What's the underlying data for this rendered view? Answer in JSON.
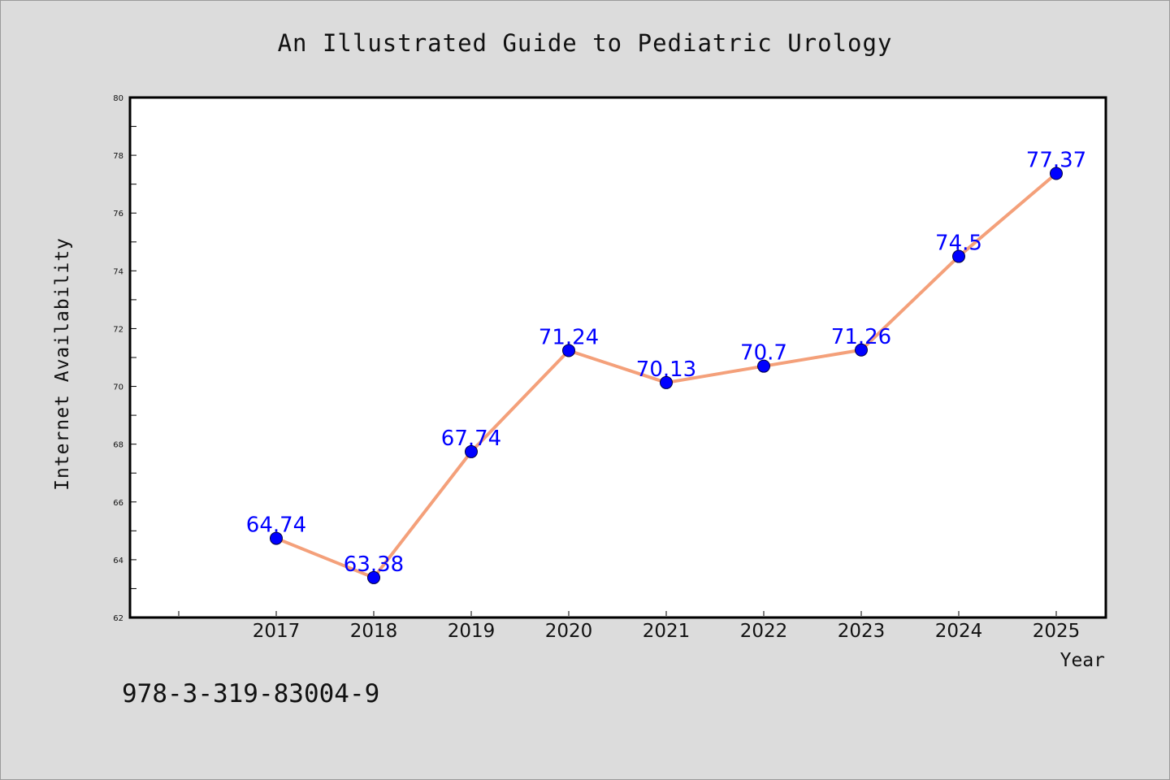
{
  "chart_data": {
    "type": "line",
    "title": "An Illustrated Guide to Pediatric Urology",
    "xlabel": "Year",
    "ylabel": "Internet Availability",
    "x": [
      "2017",
      "2018",
      "2019",
      "2020",
      "2021",
      "2022",
      "2023",
      "2024",
      "2025"
    ],
    "y": [
      64.74,
      63.38,
      67.74,
      71.24,
      70.13,
      70.7,
      71.26,
      74.5,
      77.37
    ],
    "data_labels": [
      "64.74",
      "63.38",
      "67.74",
      "71.24",
      "70.13",
      "70.7",
      "71.26",
      "74.5",
      "77.37"
    ],
    "ylim": [
      62,
      80
    ],
    "yticks": [
      62,
      64,
      66,
      68,
      70,
      72,
      74,
      76,
      78,
      80
    ],
    "grid": false,
    "line_color": "#f4a07a",
    "marker_color": "#0000ff",
    "label_color": "#0000ff"
  },
  "footer": {
    "isbn": "978-3-319-83004-9"
  }
}
